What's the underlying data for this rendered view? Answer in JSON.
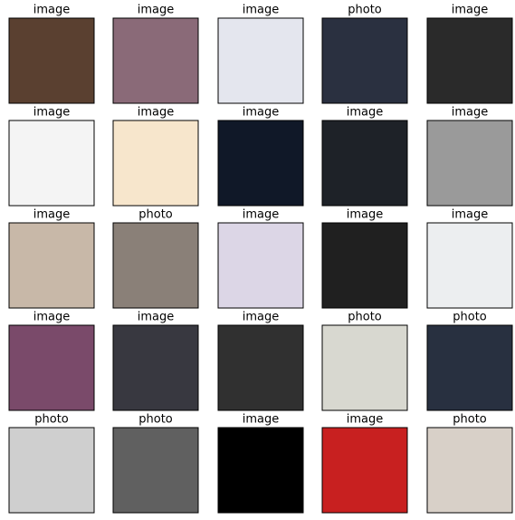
{
  "grid": {
    "labels": [
      [
        "image",
        "image",
        "image",
        "photo",
        "image"
      ],
      [
        "image",
        "image",
        "image",
        "image",
        "image"
      ],
      [
        "image",
        "photo",
        "image",
        "image",
        "image"
      ],
      [
        "image",
        "image",
        "image",
        "photo",
        "photo"
      ],
      [
        "photo",
        "photo",
        "image",
        "image",
        "photo"
      ]
    ]
  }
}
